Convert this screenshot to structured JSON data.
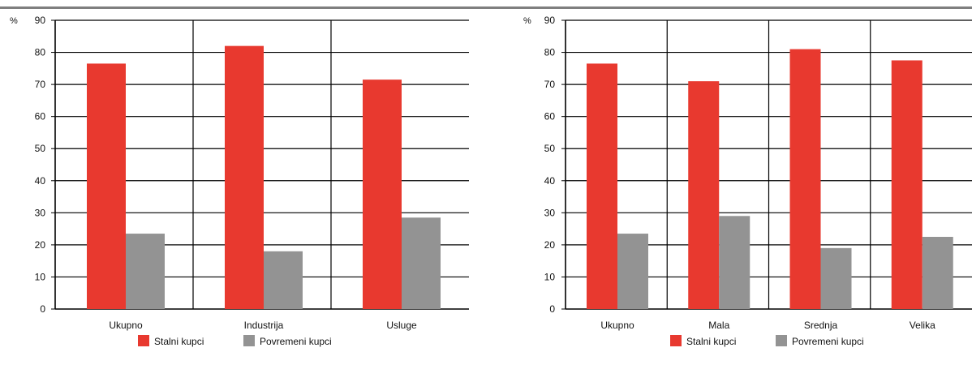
{
  "chart_data": [
    {
      "type": "bar",
      "title": "",
      "xlabel": "",
      "ylabel": "%",
      "ylim": [
        0,
        90
      ],
      "yticks": [
        0,
        10,
        20,
        30,
        40,
        50,
        60,
        70,
        80,
        90
      ],
      "grid": true,
      "legend_position": "bottom",
      "categories": [
        "Ukupno",
        "Industrija",
        "Usluge"
      ],
      "series": [
        {
          "name": "Stalni kupci",
          "color": "#e8392f",
          "values": [
            76.5,
            82,
            71.5
          ]
        },
        {
          "name": "Povremeni kupci",
          "color": "#939393",
          "values": [
            23.5,
            18,
            28.5
          ]
        }
      ]
    },
    {
      "type": "bar",
      "title": "",
      "xlabel": "",
      "ylabel": "%",
      "ylim": [
        0,
        90
      ],
      "yticks": [
        0,
        10,
        20,
        30,
        40,
        50,
        60,
        70,
        80,
        90
      ],
      "grid": true,
      "legend_position": "bottom",
      "categories": [
        "Ukupno",
        "Mala",
        "Srednja",
        "Velika"
      ],
      "series": [
        {
          "name": "Stalni kupci",
          "color": "#e8392f",
          "values": [
            76.5,
            71,
            81,
            77.5
          ]
        },
        {
          "name": "Povremeni kupci",
          "color": "#939393",
          "values": [
            23.5,
            29,
            19,
            22.5
          ]
        }
      ]
    }
  ]
}
